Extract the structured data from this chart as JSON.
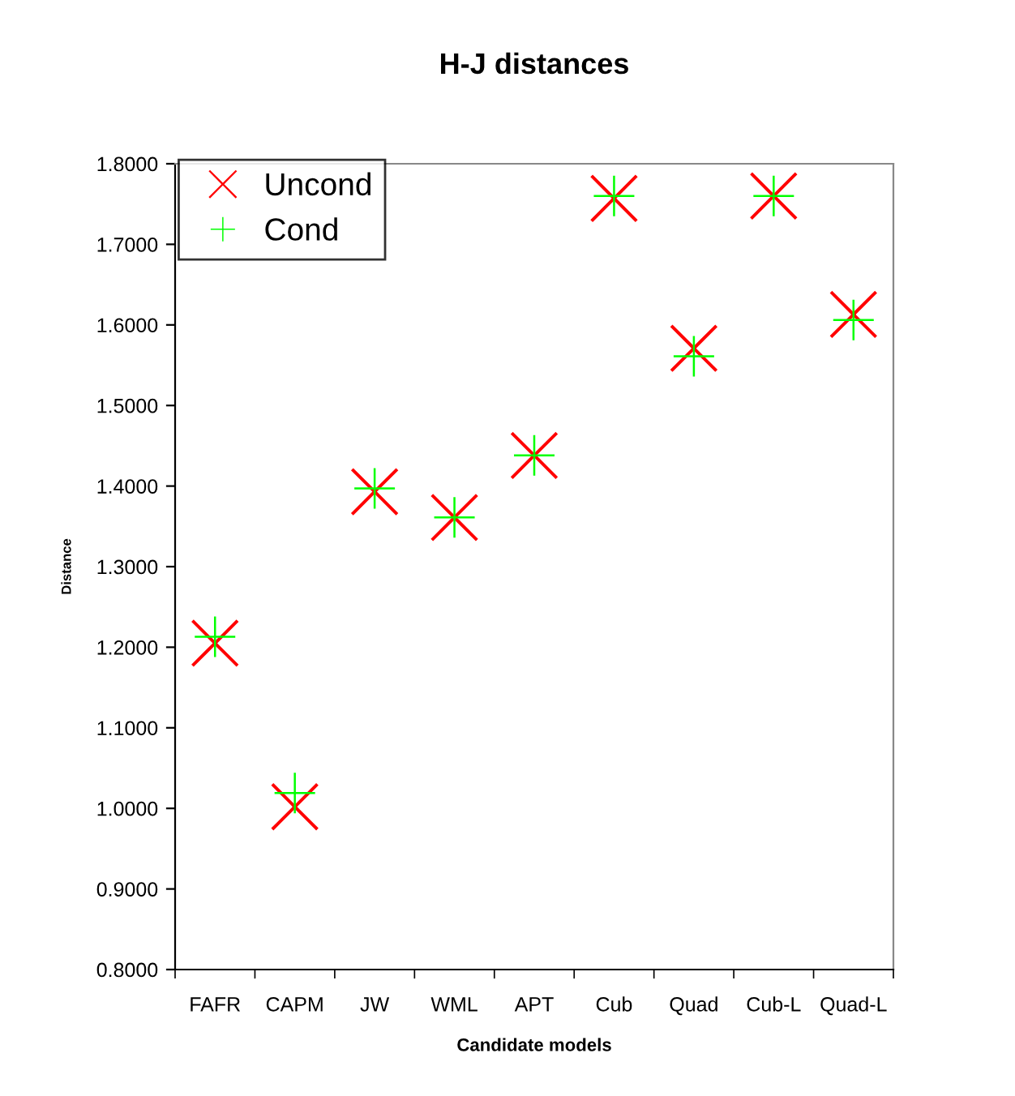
{
  "chart_data": {
    "type": "scatter",
    "title": "H-J distances",
    "xlabel": "Candidate models",
    "ylabel": "Distance",
    "categories": [
      "FAFR",
      "CAPM",
      "JW",
      "WML",
      "APT",
      "Cub",
      "Quad",
      "Cub-L",
      "Quad-L"
    ],
    "series": [
      {
        "name": "Uncond",
        "color": "#ff0000",
        "values": [
          1.205,
          1.002,
          1.393,
          1.361,
          1.438,
          1.757,
          1.571,
          1.76,
          1.613
        ]
      },
      {
        "name": "Cond",
        "color": "#00ff00",
        "values": [
          1.213,
          1.019,
          1.397,
          1.361,
          1.438,
          1.76,
          1.561,
          1.76,
          1.606
        ]
      }
    ],
    "ylim": [
      0.8,
      1.8
    ],
    "yticks": [
      {
        "value": 0.8,
        "label": "0.8000"
      },
      {
        "value": 0.9,
        "label": "0.9000"
      },
      {
        "value": 1.0,
        "label": "1.0000"
      },
      {
        "value": 1.1,
        "label": "1.1000"
      },
      {
        "value": 1.2,
        "label": "1.2000"
      },
      {
        "value": 1.3,
        "label": "1.3000"
      },
      {
        "value": 1.4,
        "label": "1.4000"
      },
      {
        "value": 1.5,
        "label": "1.5000"
      },
      {
        "value": 1.6,
        "label": "1.6000"
      },
      {
        "value": 1.7,
        "label": "1.7000"
      },
      {
        "value": 1.8,
        "label": "1.8000"
      }
    ],
    "grid": false,
    "legend": "top left"
  }
}
